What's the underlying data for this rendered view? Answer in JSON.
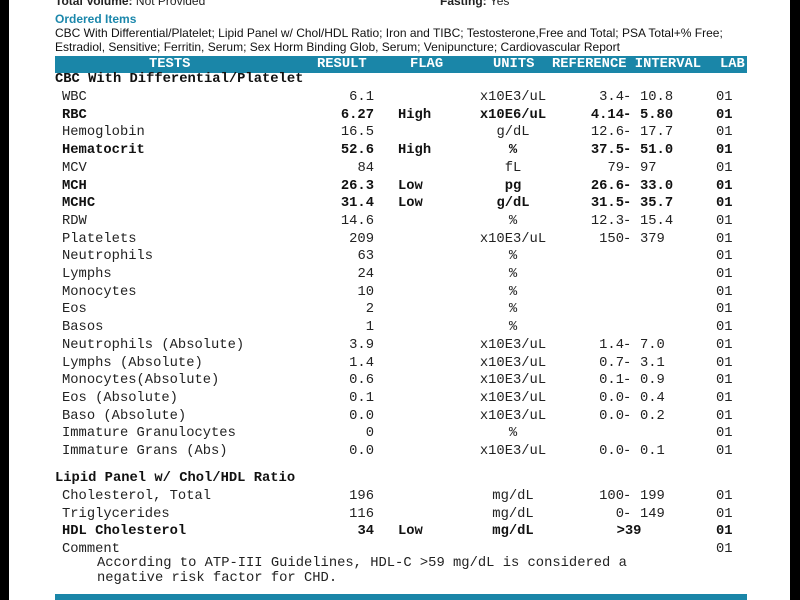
{
  "header_info": {
    "total_volume_label": "Total Volume:",
    "total_volume_value": "Not Provided",
    "fasting_label": "Fasting:",
    "fasting_value": "Yes"
  },
  "ordered_items": {
    "title": "Ordered Items",
    "text": "CBC With Differential/Platelet; Lipid Panel w/ Chol/HDL Ratio; Iron and TIBC; Testosterone,Free and Total; PSA Total+% Free; Estradiol, Sensitive; Ferritin, Serum; Sex Horm Binding Glob, Serum; Venipuncture; Cardiovascular Report"
  },
  "columns": {
    "tests": "TESTS",
    "result": "RESULT",
    "flag": "FLAG",
    "units": "UNITS",
    "reference": "REFERENCE INTERVAL",
    "lab": "LAB"
  },
  "accent_color": "#1a86a8",
  "sections": [
    {
      "title": "CBC With Differential/Platelet",
      "rows": [
        {
          "test": "WBC",
          "result": "6.1",
          "flag": "",
          "units": "x10E3/uL",
          "reference": "3.4 - 10.8",
          "lab": "01",
          "bold": false
        },
        {
          "test": "RBC",
          "result": "6.27",
          "flag": "High",
          "units": "x10E6/uL",
          "reference": "4.14 - 5.80",
          "lab": "01",
          "bold": true
        },
        {
          "test": "Hemoglobin",
          "result": "16.5",
          "flag": "",
          "units": "g/dL",
          "reference": "12.6 - 17.7",
          "lab": "01",
          "bold": false
        },
        {
          "test": "Hematocrit",
          "result": "52.6",
          "flag": "High",
          "units": "%",
          "reference": "37.5 - 51.0",
          "lab": "01",
          "bold": true
        },
        {
          "test": "MCV",
          "result": "84",
          "flag": "",
          "units": "fL",
          "reference": "79 - 97",
          "lab": "01",
          "bold": false
        },
        {
          "test": "MCH",
          "result": "26.3",
          "flag": "Low",
          "units": "pg",
          "reference": "26.6 - 33.0",
          "lab": "01",
          "bold": true
        },
        {
          "test": "MCHC",
          "result": "31.4",
          "flag": "Low",
          "units": "g/dL",
          "reference": "31.5 - 35.7",
          "lab": "01",
          "bold": true
        },
        {
          "test": "RDW",
          "result": "14.6",
          "flag": "",
          "units": "%",
          "reference": "12.3 - 15.4",
          "lab": "01",
          "bold": false
        },
        {
          "test": "Platelets",
          "result": "209",
          "flag": "",
          "units": "x10E3/uL",
          "reference": "150 - 379",
          "lab": "01",
          "bold": false
        },
        {
          "test": "Neutrophils",
          "result": "63",
          "flag": "",
          "units": "%",
          "reference": "",
          "lab": "01",
          "bold": false
        },
        {
          "test": "Lymphs",
          "result": "24",
          "flag": "",
          "units": "%",
          "reference": "",
          "lab": "01",
          "bold": false
        },
        {
          "test": "Monocytes",
          "result": "10",
          "flag": "",
          "units": "%",
          "reference": "",
          "lab": "01",
          "bold": false
        },
        {
          "test": "Eos",
          "result": "2",
          "flag": "",
          "units": "%",
          "reference": "",
          "lab": "01",
          "bold": false
        },
        {
          "test": "Basos",
          "result": "1",
          "flag": "",
          "units": "%",
          "reference": "",
          "lab": "01",
          "bold": false
        },
        {
          "test": "Neutrophils (Absolute)",
          "result": "3.9",
          "flag": "",
          "units": "x10E3/uL",
          "reference": "1.4 - 7.0",
          "lab": "01",
          "bold": false
        },
        {
          "test": "Lymphs (Absolute)",
          "result": "1.4",
          "flag": "",
          "units": "x10E3/uL",
          "reference": "0.7 - 3.1",
          "lab": "01",
          "bold": false
        },
        {
          "test": "Monocytes(Absolute)",
          "result": "0.6",
          "flag": "",
          "units": "x10E3/uL",
          "reference": "0.1 - 0.9",
          "lab": "01",
          "bold": false
        },
        {
          "test": "Eos (Absolute)",
          "result": "0.1",
          "flag": "",
          "units": "x10E3/uL",
          "reference": "0.0 - 0.4",
          "lab": "01",
          "bold": false
        },
        {
          "test": "Baso (Absolute)",
          "result": "0.0",
          "flag": "",
          "units": "x10E3/uL",
          "reference": "0.0 - 0.2",
          "lab": "01",
          "bold": false
        },
        {
          "test": "Immature Granulocytes",
          "result": "0",
          "flag": "",
          "units": "%",
          "reference": "",
          "lab": "01",
          "bold": false
        },
        {
          "test": "Immature Grans (Abs)",
          "result": "0.0",
          "flag": "",
          "units": "x10E3/uL",
          "reference": "0.0 - 0.1",
          "lab": "01",
          "bold": false
        }
      ]
    },
    {
      "title": "Lipid Panel w/ Chol/HDL Ratio",
      "rows": [
        {
          "test": "Cholesterol, Total",
          "result": "196",
          "flag": "",
          "units": "mg/dL",
          "reference": "100 - 199",
          "lab": "01",
          "bold": false
        },
        {
          "test": "Triglycerides",
          "result": "116",
          "flag": "",
          "units": "mg/dL",
          "reference": "0 - 149",
          "lab": "01",
          "bold": false
        },
        {
          "test": "HDL Cholesterol",
          "result": "34",
          "flag": "Low",
          "units": "mg/dL",
          "reference": ">39",
          "lab": "01",
          "bold": true
        },
        {
          "test": "Comment",
          "result": "",
          "flag": "",
          "units": "",
          "reference": "",
          "lab": "01",
          "bold": false
        }
      ],
      "comment": "According to ATP-III Guidelines, HDL-C >59 mg/dL is considered a\nnegative risk factor for CHD."
    }
  ]
}
